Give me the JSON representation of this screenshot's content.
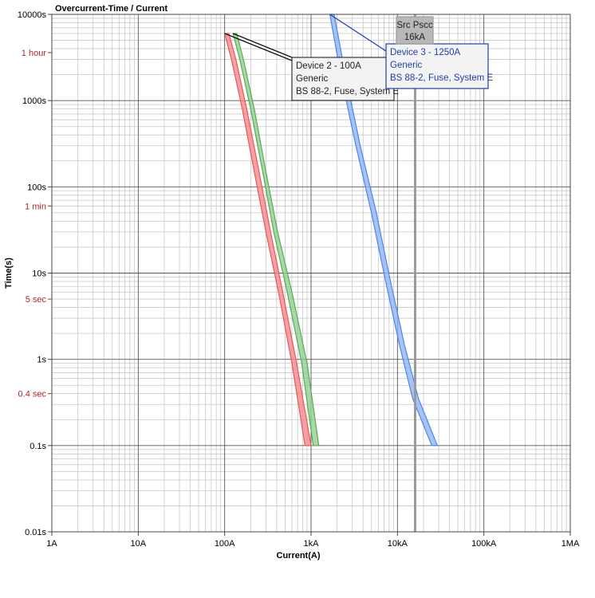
{
  "chart_data": {
    "type": "line",
    "title": "Overcurrent-Time / Current",
    "xlabel": "Current(A)",
    "ylabel": "Time(s)",
    "x_scale": "log",
    "y_scale": "log",
    "xlim": [
      1,
      1000000
    ],
    "ylim": [
      0.01,
      10000
    ],
    "grid": true,
    "x_ticks": [
      {
        "value": 1,
        "label": "1A"
      },
      {
        "value": 10,
        "label": "10A"
      },
      {
        "value": 100,
        "label": "100A"
      },
      {
        "value": 1000,
        "label": "1kA"
      },
      {
        "value": 10000,
        "label": "10kA"
      },
      {
        "value": 100000,
        "label": "100kA"
      },
      {
        "value": 1000000,
        "label": "1MA"
      }
    ],
    "y_ticks": [
      {
        "value": 0.01,
        "label": "0.01s"
      },
      {
        "value": 0.1,
        "label": "0.1s"
      },
      {
        "value": 1,
        "label": "1s"
      },
      {
        "value": 10,
        "label": "10s"
      },
      {
        "value": 100,
        "label": "100s"
      },
      {
        "value": 1000,
        "label": "1000s"
      },
      {
        "value": 10000,
        "label": "10000s"
      }
    ],
    "y_special_ticks": [
      {
        "value": 3600,
        "label": "1 hour"
      },
      {
        "value": 60,
        "label": "1 min"
      },
      {
        "value": 5,
        "label": "5 sec"
      },
      {
        "value": 0.4,
        "label": "0.4 sec"
      }
    ],
    "series": [
      {
        "color": "#e8585a",
        "fill": "#f4888a",
        "min_curve": [
          [
            100,
            6000
          ],
          [
            120,
            3000
          ],
          [
            160,
            800
          ],
          [
            220,
            150
          ],
          [
            300,
            30
          ],
          [
            420,
            6
          ],
          [
            600,
            0.9
          ],
          [
            850,
            0.1
          ]
        ],
        "max_curve": [
          [
            112,
            6000
          ],
          [
            135,
            3000
          ],
          [
            180,
            800
          ],
          [
            250,
            150
          ],
          [
            340,
            30
          ],
          [
            470,
            6
          ],
          [
            680,
            0.9
          ],
          [
            1000,
            0.1
          ]
        ]
      },
      {
        "color": "#5aaa5a",
        "fill": "#8fcf8f",
        "min_curve": [
          [
            125,
            6000
          ],
          [
            150,
            3000
          ],
          [
            200,
            800
          ],
          [
            275,
            150
          ],
          [
            370,
            30
          ],
          [
            530,
            6
          ],
          [
            780,
            0.9
          ],
          [
            1060,
            0.1
          ]
        ],
        "max_curve": [
          [
            138,
            6000
          ],
          [
            165,
            3000
          ],
          [
            220,
            800
          ],
          [
            300,
            150
          ],
          [
            410,
            30
          ],
          [
            600,
            6
          ],
          [
            900,
            0.9
          ],
          [
            1230,
            0.1
          ]
        ]
      },
      {
        "color": "#4f86e8",
        "fill": "#8db4f3",
        "min_curve": [
          [
            1650,
            10000
          ],
          [
            2200,
            2000
          ],
          [
            3300,
            300
          ],
          [
            5000,
            50
          ],
          [
            7300,
            8
          ],
          [
            10500,
            1.5
          ],
          [
            15000,
            0.35
          ],
          [
            25000,
            0.1
          ]
        ],
        "max_curve": [
          [
            1850,
            10000
          ],
          [
            2500,
            2000
          ],
          [
            3700,
            300
          ],
          [
            5700,
            50
          ],
          [
            8300,
            8
          ],
          [
            12000,
            1.5
          ],
          [
            17500,
            0.35
          ],
          [
            29000,
            0.1
          ]
        ]
      }
    ],
    "reference_line": {
      "value": 16000,
      "color": "#9a9a9a"
    },
    "labels": [
      {
        "lines": [
          "Device 2 - 100A",
          "Generic",
          "BS 88-2, Fuse, System E"
        ],
        "border": "#333333",
        "text_color": "#222222",
        "background": "#f3f3f3",
        "leader_colors": [
          "#111111",
          "#111111"
        ]
      },
      {
        "lines": [
          "Device 3 - 1250A",
          "Generic",
          "BS 88-2, Fuse, System E"
        ],
        "border": "#1f3fb0",
        "text_color": "#1f3fb0",
        "background": "#f3f3f3",
        "leader_colors": [
          "#1f3fb0"
        ]
      },
      {
        "lines": [
          "Src Pscc",
          "16kA"
        ],
        "border": "#999999",
        "text_color": "#222222",
        "background": "#b8b8b8",
        "leader_colors": []
      }
    ]
  }
}
